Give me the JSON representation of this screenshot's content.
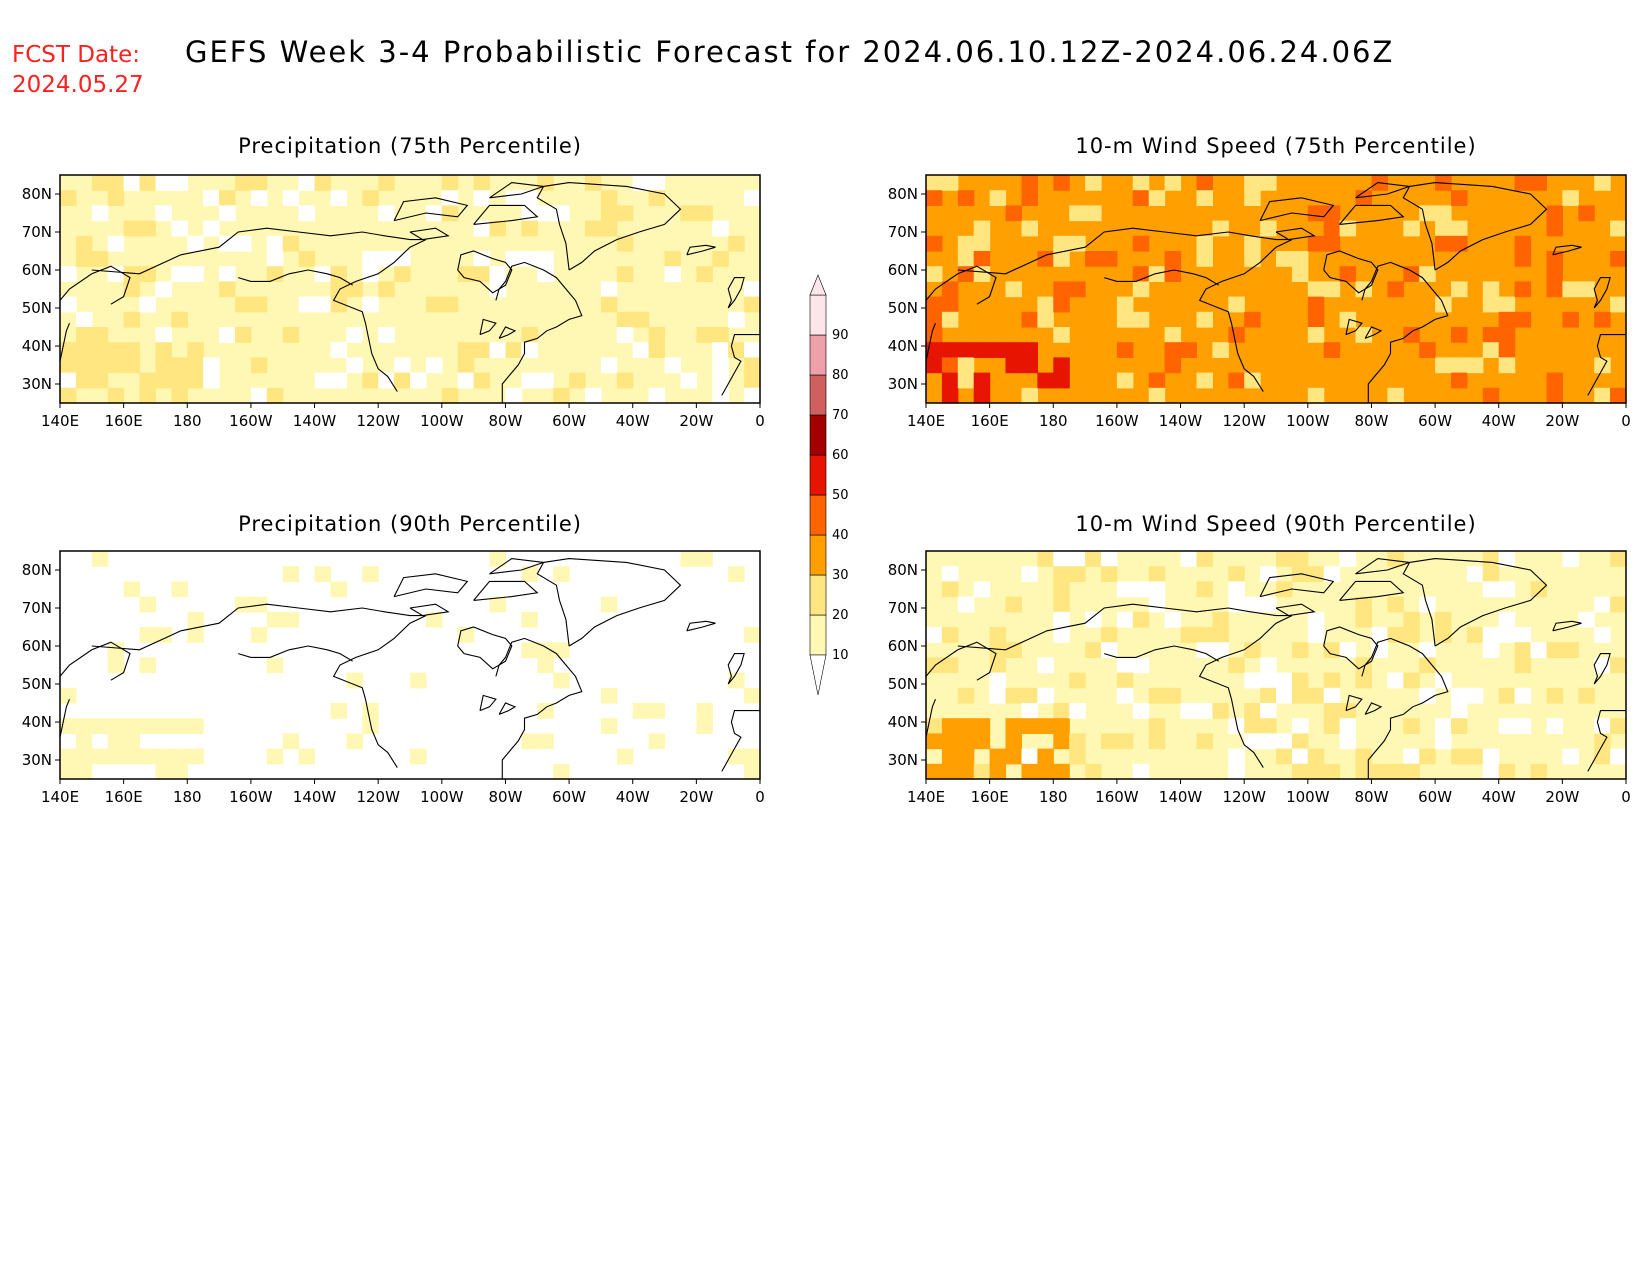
{
  "header": {
    "fcst_label": "FCST Date:",
    "fcst_date": "2024.05.27",
    "title": "GEFS Week 3-4 Probabilistic Forecast for 2024.06.10.12Z-2024.06.24.06Z"
  },
  "panels": [
    {
      "id": "precip75",
      "title": "Precipitation (75th Percentile)",
      "base_level": 1,
      "hot_level": 2
    },
    {
      "id": "wind75",
      "title": "10-m Wind Speed (75th Percentile)",
      "base_level": 3,
      "hot_level": 5
    },
    {
      "id": "precip90",
      "title": "Precipitation (90th Percentile)",
      "base_level": 0,
      "hot_level": 1
    },
    {
      "id": "wind90",
      "title": "10-m Wind Speed (90th Percentile)",
      "base_level": 1,
      "hot_level": 3
    }
  ],
  "axes": {
    "lon_ticks": [
      "140E",
      "160E",
      "180",
      "160W",
      "140W",
      "120W",
      "100W",
      "80W",
      "60W",
      "40W",
      "20W",
      "0"
    ],
    "lat_ticks": [
      "80N",
      "70N",
      "60N",
      "50N",
      "40N",
      "30N"
    ],
    "lon_range": [
      140,
      360
    ],
    "lat_range": [
      25,
      85
    ]
  },
  "colorbar": {
    "levels": [
      "10",
      "20",
      "30",
      "40",
      "50",
      "60",
      "70",
      "80",
      "90"
    ],
    "colors": [
      "#ffffff",
      "#fff8b4",
      "#ffe680",
      "#ff9f00",
      "#ff6400",
      "#e61400",
      "#a50000",
      "#d06060",
      "#f0a0a8",
      "#fde6ea"
    ]
  }
}
